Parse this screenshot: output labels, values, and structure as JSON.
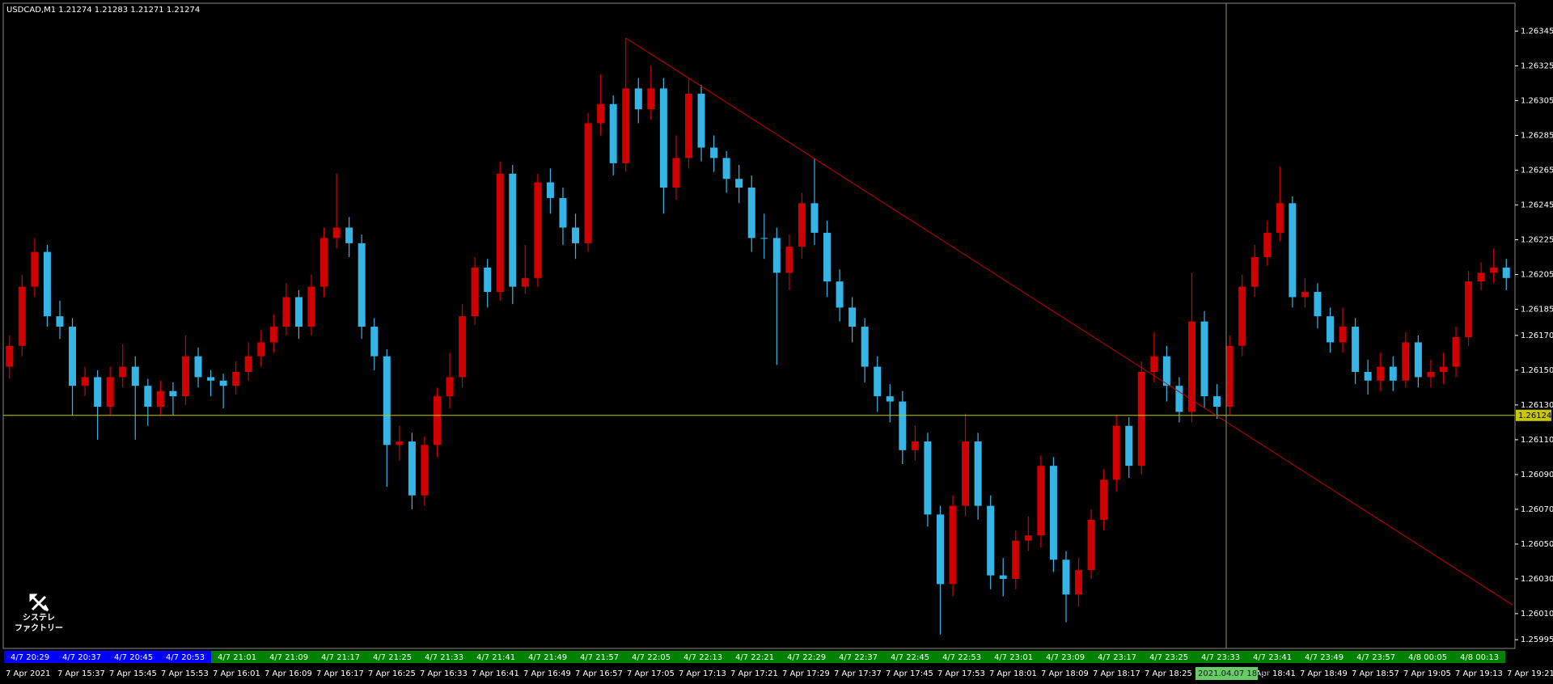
{
  "chart_data": {
    "type": "candlestick",
    "title": "USDCAD,M1  1.21274 1.21283 1.21271 1.21274",
    "up_color": "#d00000",
    "down_color": "#35b4e6",
    "open": [
      1.26152,
      1.26164,
      1.26198,
      1.26218,
      1.26181,
      1.26175,
      1.26141,
      1.26146,
      1.26129,
      1.26146,
      1.26152,
      1.26141,
      1.26129,
      1.26138,
      1.26135,
      1.26158,
      1.26146,
      1.26144,
      1.26141,
      1.26149,
      1.26158,
      1.26166,
      1.26175,
      1.26192,
      1.26175,
      1.26198,
      1.26226,
      1.26232,
      1.26223,
      1.26175,
      1.26158,
      1.26107,
      1.26109,
      1.26078,
      1.26107,
      1.26135,
      1.26146,
      1.26181,
      1.26209,
      1.26195,
      1.26263,
      1.26198,
      1.26203,
      1.26258,
      1.26249,
      1.26232,
      1.26223,
      1.26292,
      1.26303,
      1.26269,
      1.26312,
      1.263,
      1.26312,
      1.26255,
      1.26272,
      1.26309,
      1.26278,
      1.26272,
      1.2626,
      1.26255,
      1.26226,
      1.26226,
      1.26206,
      1.26221,
      1.26246,
      1.26229,
      1.26201,
      1.26186,
      1.26175,
      1.26152,
      1.26135,
      1.26132,
      1.26104,
      1.26109,
      1.26067,
      1.26027,
      1.26072,
      1.26109,
      1.26072,
      1.26032,
      1.2603,
      1.26052,
      1.26055,
      1.26095,
      1.26041,
      1.26021,
      1.26035,
      1.26064,
      1.26087,
      1.26118,
      1.26095,
      1.26149,
      1.26158,
      1.26141,
      1.26126,
      1.26178,
      1.26135,
      1.26129,
      1.26164,
      1.26198,
      1.26215,
      1.26229,
      1.26246,
      1.26192,
      1.26195,
      1.26181,
      1.26166,
      1.26175,
      1.26149,
      1.26144,
      1.26152,
      1.26144,
      1.26166,
      1.26146,
      1.26149,
      1.26152,
      1.26169,
      1.26201,
      1.26206,
      1.26209
    ],
    "high": [
      1.2617,
      1.26205,
      1.26226,
      1.26222,
      1.2619,
      1.2618,
      1.26152,
      1.2615,
      1.26152,
      1.26165,
      1.26158,
      1.26145,
      1.26144,
      1.26143,
      1.2617,
      1.26163,
      1.2615,
      1.26148,
      1.26155,
      1.26166,
      1.26173,
      1.26182,
      1.262,
      1.26196,
      1.26205,
      1.26232,
      1.26263,
      1.26238,
      1.26228,
      1.2618,
      1.26162,
      1.26118,
      1.26114,
      1.26112,
      1.2614,
      1.2616,
      1.26188,
      1.26215,
      1.26214,
      1.2627,
      1.26268,
      1.26222,
      1.26263,
      1.26266,
      1.26255,
      1.2624,
      1.26298,
      1.2632,
      1.26308,
      1.26341,
      1.26318,
      1.26325,
      1.26318,
      1.26285,
      1.26318,
      1.26314,
      1.26285,
      1.26276,
      1.26268,
      1.26262,
      1.2624,
      1.26232,
      1.26228,
      1.26252,
      1.26272,
      1.26236,
      1.26208,
      1.26192,
      1.2618,
      1.26158,
      1.26142,
      1.26138,
      1.26118,
      1.26114,
      1.26072,
      1.26078,
      1.26125,
      1.26114,
      1.26078,
      1.26042,
      1.26058,
      1.26066,
      1.26101,
      1.261,
      1.26046,
      1.26042,
      1.2607,
      1.26093,
      1.26124,
      1.26123,
      1.26155,
      1.26172,
      1.26164,
      1.26146,
      1.26206,
      1.26184,
      1.26142,
      1.2617,
      1.26205,
      1.26222,
      1.26236,
      1.26267,
      1.2625,
      1.26203,
      1.262,
      1.26186,
      1.26186,
      1.2618,
      1.26156,
      1.2616,
      1.26158,
      1.26172,
      1.2617,
      1.26156,
      1.2616,
      1.26175,
      1.26207,
      1.26212,
      1.2622,
      1.26214
    ],
    "low": [
      1.26145,
      1.26158,
      1.26192,
      1.26175,
      1.26168,
      1.26124,
      1.26135,
      1.2611,
      1.26124,
      1.2614,
      1.2611,
      1.26118,
      1.26124,
      1.26124,
      1.2613,
      1.2614,
      1.26135,
      1.26128,
      1.26136,
      1.26144,
      1.26152,
      1.2616,
      1.2617,
      1.26168,
      1.2617,
      1.26192,
      1.2622,
      1.26215,
      1.26168,
      1.2615,
      1.26083,
      1.26098,
      1.2607,
      1.26072,
      1.261,
      1.26128,
      1.2614,
      1.26176,
      1.26186,
      1.2619,
      1.26188,
      1.26194,
      1.26198,
      1.2624,
      1.26222,
      1.26214,
      1.26218,
      1.26285,
      1.26262,
      1.26264,
      1.26292,
      1.26294,
      1.2624,
      1.26248,
      1.26266,
      1.2627,
      1.26264,
      1.26252,
      1.26246,
      1.26218,
      1.26214,
      1.26153,
      1.26196,
      1.26214,
      1.26222,
      1.26192,
      1.26178,
      1.26166,
      1.26143,
      1.26126,
      1.2612,
      1.26096,
      1.26098,
      1.2606,
      1.25998,
      1.2602,
      1.26066,
      1.26064,
      1.26024,
      1.2602,
      1.26024,
      1.26046,
      1.26048,
      1.26034,
      1.26005,
      1.26014,
      1.2603,
      1.26058,
      1.2608,
      1.26088,
      1.2609,
      1.26143,
      1.26132,
      1.2612,
      1.2612,
      1.26128,
      1.26122,
      1.26124,
      1.26158,
      1.26192,
      1.2621,
      1.26224,
      1.26186,
      1.26186,
      1.26174,
      1.2616,
      1.2616,
      1.26142,
      1.26136,
      1.26138,
      1.26138,
      1.2614,
      1.2614,
      1.2614,
      1.26142,
      1.26146,
      1.26164,
      1.26196,
      1.262,
      1.26196
    ],
    "close": [
      1.26164,
      1.26198,
      1.26218,
      1.26181,
      1.26175,
      1.26141,
      1.26146,
      1.26129,
      1.26146,
      1.26152,
      1.26141,
      1.26129,
      1.26138,
      1.26135,
      1.26158,
      1.26146,
      1.26144,
      1.26141,
      1.26149,
      1.26158,
      1.26166,
      1.26175,
      1.26192,
      1.26175,
      1.26198,
      1.26226,
      1.26232,
      1.26223,
      1.26175,
      1.26158,
      1.26107,
      1.26109,
      1.26078,
      1.26107,
      1.26135,
      1.26146,
      1.26181,
      1.26209,
      1.26195,
      1.26263,
      1.26198,
      1.26203,
      1.26258,
      1.26249,
      1.26232,
      1.26223,
      1.26292,
      1.26303,
      1.26269,
      1.26312,
      1.263,
      1.26312,
      1.26255,
      1.26272,
      1.26309,
      1.26278,
      1.26272,
      1.2626,
      1.26255,
      1.26226,
      1.26226,
      1.26206,
      1.26221,
      1.26246,
      1.26229,
      1.26201,
      1.26186,
      1.26175,
      1.26152,
      1.26135,
      1.26132,
      1.26104,
      1.26109,
      1.26067,
      1.26027,
      1.26072,
      1.26109,
      1.26072,
      1.26032,
      1.2603,
      1.26052,
      1.26055,
      1.26095,
      1.26041,
      1.26021,
      1.26035,
      1.26064,
      1.26087,
      1.26118,
      1.26095,
      1.26149,
      1.26158,
      1.26141,
      1.26126,
      1.26178,
      1.26135,
      1.26129,
      1.26164,
      1.26198,
      1.26215,
      1.26229,
      1.26246,
      1.26192,
      1.26195,
      1.26181,
      1.26166,
      1.26175,
      1.26149,
      1.26144,
      1.26152,
      1.26144,
      1.26166,
      1.26146,
      1.26149,
      1.26152,
      1.26169,
      1.26201,
      1.26206,
      1.26209,
      1.26203
    ],
    "ylim": [
      1.2599,
      1.26361
    ],
    "yticks": [
      1.26345,
      1.26325,
      1.26305,
      1.26285,
      1.26265,
      1.26245,
      1.26225,
      1.26205,
      1.26185,
      {
        "value": 1.2617,
        "label": "1.26170"
      },
      {
        "value": 1.2615,
        "label": "1.26150"
      },
      {
        "value": 1.2613,
        "label": "1.26130"
      },
      {
        "value": 1.2611,
        "label": "1.26110"
      },
      {
        "value": 1.2609,
        "label": "1.26090"
      },
      {
        "value": 1.2607,
        "label": "1.26070"
      },
      {
        "value": 1.2605,
        "label": "1.26050"
      },
      {
        "value": 1.2603,
        "label": "1.26030"
      },
      {
        "value": 1.2601,
        "label": "1.26010"
      },
      1.25995
    ],
    "bid_line": 1.26124,
    "bid_color": "#c8c800",
    "trendline": [
      1.26341,
      1.26015
    ],
    "trendline_color": "#c80000",
    "time_labels": [
      "4/7 20:29",
      "4/7 20:37",
      "4/7 20:45",
      "4/7 20:53",
      "4/7 21:01",
      "4/7 21:09",
      "4/7 21:17",
      "4/7 21:25",
      "4/7 21:33",
      "4/7 21:41",
      "4/7 21:49",
      "4/7 21:57",
      "4/7 22:05",
      "4/7 22:13",
      "4/7 22:21",
      "4/7 22:29",
      "4/7 22:37",
      "4/7 22:45",
      "4/7 22:53",
      "4/7 23:01",
      "4/7 23:09",
      "4/7 23:17",
      "4/7 23:25",
      "4/7 23:33",
      "4/7 23:41",
      "4/7 23:49",
      "4/7 23:57",
      "4/8 00:05",
      "4/8 00:13"
    ],
    "date_labels": [
      "7 Apr 2021",
      "7 Apr 15:37",
      "7 Apr 15:45",
      "7 Apr 15:53",
      "7 Apr 16:01",
      "7 Apr 16:09",
      "7 Apr 16:17",
      "7 Apr 16:25",
      "7 Apr 16:33",
      "7 Apr 16:41",
      "7 Apr 16:49",
      "7 Apr 16:57",
      "7 Apr 17:05",
      "7 Apr 17:13",
      "7 Apr 17:21",
      "7 Apr 17:29",
      "7 Apr 17:37",
      "7 Apr 17:45",
      "7 Apr 17:53",
      "7 Apr 18:01",
      "7 Apr 18:09",
      "7 Apr 18:17",
      "7 Apr 18:25",
      null,
      "7 Apr 18:41",
      "7 Apr 18:49",
      "7 Apr 18:57",
      "7 Apr 19:05",
      "7 Apr 19:13",
      "7 Apr 19:21"
    ],
    "cursor_time": "2021.04.07 18:38",
    "logo": [
      "システレ",
      "ファクトリー"
    ]
  }
}
